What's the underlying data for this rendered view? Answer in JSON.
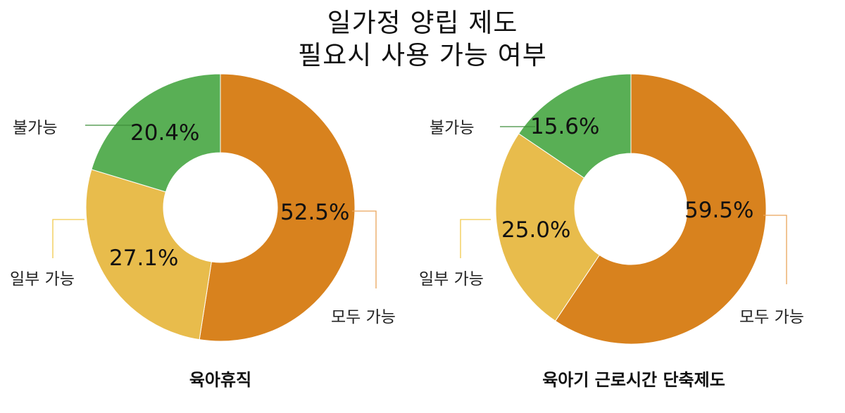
{
  "title": {
    "line1": "일가정 양립 제도",
    "line2": "필요시 사용 가능 여부"
  },
  "colors": {
    "all_possible": "#D8821E",
    "partially_possible": "#E8BC4C",
    "impossible": "#59AF55"
  },
  "chart_data": [
    {
      "type": "pie",
      "variant": "donut",
      "title": "육아휴직",
      "categories": [
        "모두 가능",
        "일부 가능",
        "불가능"
      ],
      "values": [
        52.5,
        27.1,
        20.4
      ],
      "labels": [
        "52.5%",
        "27.1%",
        "20.4%"
      ],
      "start_angle": "12 o'clock, clockwise",
      "legend": "none (leader-line category labels)"
    },
    {
      "type": "pie",
      "variant": "donut",
      "title": "육아기 근로시간 단축제도",
      "categories": [
        "모두 가능",
        "일부 가능",
        "불가능"
      ],
      "values": [
        59.5,
        25.0,
        15.6
      ],
      "labels": [
        "59.5%",
        "25.0%",
        "15.6%"
      ],
      "start_angle": "12 o'clock, clockwise",
      "legend": "none (leader-line category labels)"
    }
  ]
}
